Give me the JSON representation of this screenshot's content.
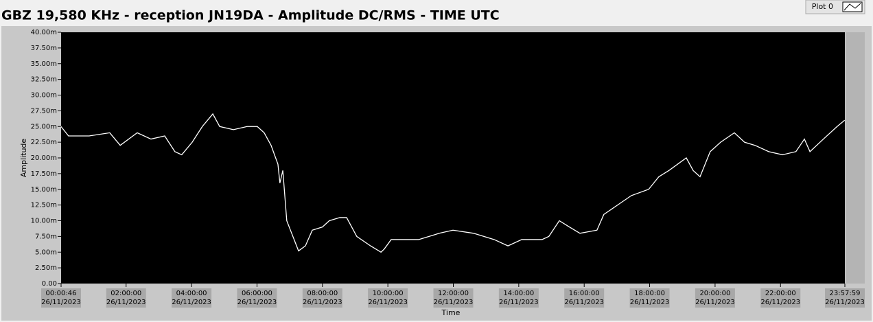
{
  "chart_data": {
    "type": "line",
    "title": "GBZ  19,580 KHz - reception JN19DA -  Amplitude DC/RMS   - TIME UTC",
    "xlabel": "Time",
    "ylabel": "Amplitude",
    "x": [
      0.01,
      0.24,
      0.87,
      1.5,
      1.82,
      2.34,
      2.76,
      3.18,
      3.49,
      3.7,
      4.02,
      4.33,
      4.65,
      4.86,
      5.28,
      5.7,
      6.01,
      6.22,
      6.43,
      6.64,
      6.7,
      6.79,
      6.91,
      7.06,
      7.27,
      7.48,
      7.69,
      8.0,
      8.21,
      8.53,
      8.74,
      9.05,
      9.47,
      9.79,
      9.89,
      10.1,
      10.52,
      10.94,
      11.57,
      11.99,
      12.62,
      13.25,
      13.67,
      14.09,
      14.71,
      14.92,
      15.24,
      15.55,
      15.87,
      16.39,
      16.6,
      17.02,
      17.44,
      17.97,
      18.28,
      18.59,
      19.12,
      19.33,
      19.54,
      19.85,
      20.17,
      20.59,
      20.9,
      21.22,
      21.64,
      22.06,
      22.47,
      22.73,
      22.9,
      23.31,
      23.73,
      23.96
    ],
    "series": [
      {
        "name": "Plot 0",
        "color": "#ffffff",
        "values": [
          25,
          23.5,
          23.5,
          24,
          22,
          24,
          23,
          23.5,
          21,
          20.5,
          22.5,
          25,
          27,
          25,
          24.5,
          25,
          25,
          24,
          22,
          19,
          16,
          18,
          10,
          8,
          5.2,
          6,
          8.5,
          9,
          10,
          10.5,
          10.5,
          7.5,
          6,
          5,
          5.5,
          7,
          7,
          7,
          8,
          8.5,
          8,
          7,
          6,
          7,
          7,
          7.5,
          10,
          9,
          8,
          8.5,
          11,
          12.5,
          14,
          15,
          17,
          18,
          20,
          18,
          17,
          21,
          22.5,
          24,
          22.5,
          22,
          21,
          20.5,
          21,
          23,
          21,
          23,
          25,
          26
        ]
      }
    ],
    "xlim": [
      0.0128,
      23.9664
    ],
    "xticks": [
      {
        "value": 0.0128,
        "label": "00:00:46 26/11/2023"
      },
      {
        "value": 2,
        "label": "02:00:00 26/11/2023"
      },
      {
        "value": 4,
        "label": "04:00:00 26/11/2023"
      },
      {
        "value": 6,
        "label": "06:00:00 26/11/2023"
      },
      {
        "value": 8,
        "label": "08:00:00 26/11/2023"
      },
      {
        "value": 10,
        "label": "10:00:00 26/11/2023"
      },
      {
        "value": 12,
        "label": "12:00:00 26/11/2023"
      },
      {
        "value": 14,
        "label": "14:00:00 26/11/2023"
      },
      {
        "value": 16,
        "label": "16:00:00 26/11/2023"
      },
      {
        "value": 18,
        "label": "18:00:00 26/11/2023"
      },
      {
        "value": 20,
        "label": "20:00:00 26/11/2023"
      },
      {
        "value": 22,
        "label": "22:00:00 26/11/2023"
      },
      {
        "value": 23.9664,
        "label": "23:57:59 26/11/2023"
      }
    ],
    "ylim": [
      0,
      40
    ],
    "yticks": [
      {
        "value": 0,
        "label": "0.00"
      },
      {
        "value": 2.5,
        "label": "2.50m"
      },
      {
        "value": 5,
        "label": "5.00m"
      },
      {
        "value": 7.5,
        "label": "7.50m"
      },
      {
        "value": 10,
        "label": "10.00m"
      },
      {
        "value": 12.5,
        "label": "12.50m"
      },
      {
        "value": 15,
        "label": "15.00m"
      },
      {
        "value": 17.5,
        "label": "17.50m"
      },
      {
        "value": 20,
        "label": "20.00m"
      },
      {
        "value": 22.5,
        "label": "22.50m"
      },
      {
        "value": 25,
        "label": "25.00m"
      },
      {
        "value": 27.5,
        "label": "27.50m"
      },
      {
        "value": 30,
        "label": "30.00m"
      },
      {
        "value": 32.5,
        "label": "32.50m"
      },
      {
        "value": 35,
        "label": "35.00m"
      },
      {
        "value": 37.5,
        "label": "37.50m"
      },
      {
        "value": 40,
        "label": "40.00m"
      }
    ],
    "grid": false
  }
}
